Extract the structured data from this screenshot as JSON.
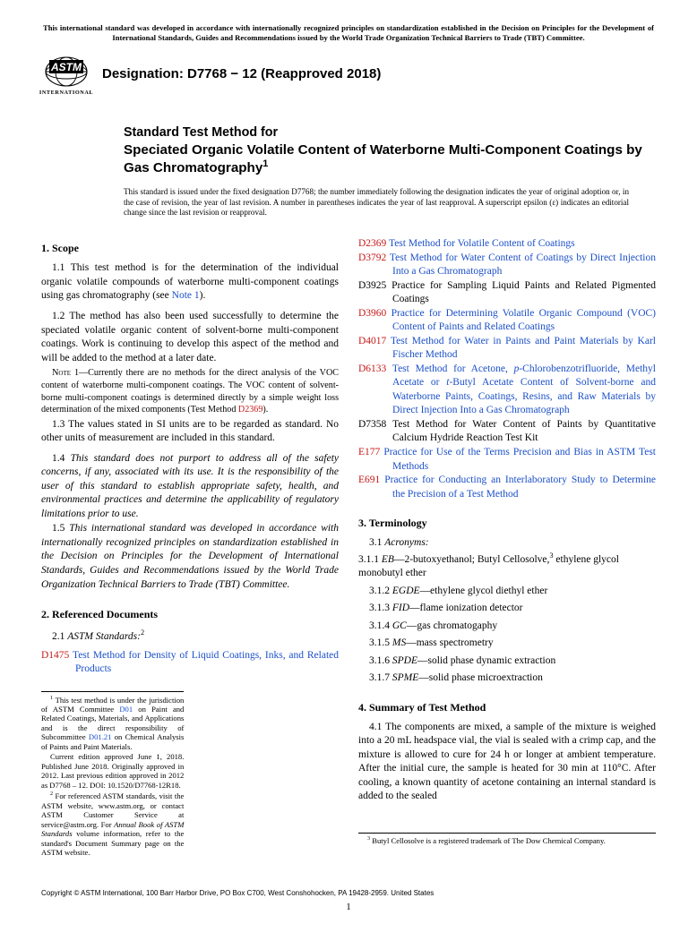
{
  "top_notice": "This international standard was developed in accordance with internationally recognized principles on standardization established in the Decision on Principles for the Development of International Standards, Guides and Recommendations issued by the World Trade Organization Technical Barriers to Trade (TBT) Committee.",
  "logo_label": "INTERNATIONAL",
  "designation": "Designation: D7768 − 12 (Reapproved 2018)",
  "title_pre": "Standard Test Method for",
  "title_main": "Speciated Organic Volatile Content of Waterborne Multi-Component Coatings by Gas Chromatography",
  "title_sup": "1",
  "issue_note": "This standard is issued under the fixed designation D7768; the number immediately following the designation indicates the year of original adoption or, in the case of revision, the year of last revision. A number in parentheses indicates the year of last reapproval. A superscript epsilon (ε) indicates an editorial change since the last revision or reapproval.",
  "s1_head": "1. Scope",
  "s1_1a": "1.1 This test method is for the determination of the individual organic volatile compounds of waterborne multi-component coatings using gas chromatography (see ",
  "s1_1_note": "Note 1",
  "s1_1b": ").",
  "s1_2": "1.2 The method has also been used successfully to determine the speciated volatile organic content of solvent-borne multi-component coatings. Work is continuing to develop this aspect of the method and will be added to the method at a later date.",
  "note1_a": " 1—Currently there are no methods for the direct analysis of the VOC content of waterborne multi-component coatings. The VOC content of solvent-borne multi-component coatings is determined directly by a simple weight loss determination of the mixed components (Test Method ",
  "note1_ref": "D2369",
  "note1_b": ").",
  "s1_3": "1.3 The values stated in SI units are to be regarded as standard. No other units of measurement are included in this standard.",
  "s1_4": "1.4 This standard does not purport to address all of the safety concerns, if any, associated with its use. It is the responsibility of the user of this standard to establish appropriate safety, health, and environmental practices and determine the applicability of regulatory limitations prior to use.",
  "s1_5": "1.5 This international standard was developed in accordance with internationally recognized principles on standardization established in the Decision on Principles for the Development of International Standards, Guides and Recommendations issued by the World Trade Organization Technical Barriers to Trade (TBT) Committee.",
  "s2_head": "2. Referenced Documents",
  "s2_1a": "2.1 ",
  "s2_1b": "ASTM Standards:",
  "s2_1sup": "2",
  "refs": [
    {
      "code": "D1475",
      "title": "Test Method for Density of Liquid Coatings, Inks, and Related Products",
      "red": true,
      "blue": false
    },
    {
      "code": "D2369",
      "title": "Test Method for Volatile Content of Coatings",
      "red": true,
      "blue": true
    },
    {
      "code": "D3792",
      "title": "Test Method for Water Content of Coatings by Direct Injection Into a Gas Chromatograph",
      "red": true,
      "blue": true
    },
    {
      "code": "D3925",
      "title": "Practice for Sampling Liquid Paints and Related Pigmented Coatings",
      "red": false,
      "blue": false
    },
    {
      "code": "D3960",
      "title": "Practice for Determining Volatile Organic Compound (VOC) Content of Paints and Related Coatings",
      "red": true,
      "blue": true
    },
    {
      "code": "D4017",
      "title": "Test Method for Water in Paints and Paint Materials by Karl Fischer Method",
      "red": true,
      "blue": true
    },
    {
      "code": "D6133",
      "title": "Test Method for Acetone, p-Chlorobenzotrifluoride, Methyl Acetate or t-Butyl Acetate Content of Solvent-borne and Waterborne Paints, Coatings, Resins, and Raw Materials by Direct Injection Into a Gas Chromatograph",
      "red": true,
      "blue": true,
      "ital_p": true
    },
    {
      "code": "D7358",
      "title": "Test Method for Water Content of Paints by Quantitative Calcium Hydride Reaction Test Kit",
      "red": false,
      "blue": false
    },
    {
      "code": "E177",
      "title": "Practice for Use of the Terms Precision and Bias in ASTM Test Methods",
      "red": true,
      "blue": true
    },
    {
      "code": "E691",
      "title": "Practice for Conducting an Interlaboratory Study to Determine the Precision of a Test Method",
      "red": true,
      "blue": true
    }
  ],
  "s3_head": "3. Terminology",
  "s3_1": "3.1 Acronyms:",
  "terms": [
    {
      "abbr": "EB",
      "def": "—2-butoxyethanol; Butyl Cellosolve,",
      "sup": "3",
      "def2": " ethylene glycol monobutyl ether",
      "num": "3.1.1 "
    },
    {
      "abbr": "EGDE",
      "def": "—ethylene glycol diethyl ether",
      "num": "3.1.2 "
    },
    {
      "abbr": "FID",
      "def": "—flame ionization detector",
      "num": "3.1.3 "
    },
    {
      "abbr": "GC",
      "def": "—gas chromatogaphy",
      "num": "3.1.4 "
    },
    {
      "abbr": "MS",
      "def": "—mass spectrometry",
      "num": "3.1.5 "
    },
    {
      "abbr": "SPDE",
      "def": "—solid phase dynamic extraction",
      "num": "3.1.6 "
    },
    {
      "abbr": "SPME",
      "def": "—solid phase microextraction",
      "num": "3.1.7 "
    }
  ],
  "s4_head": "4. Summary of Test Method",
  "s4_1": "4.1 The components are mixed, a sample of the mixture is weighed into a 20 mL headspace vial, the vial is sealed with a crimp cap, and the mixture is allowed to cure for 24 h or longer at ambient temperature. After the initial cure, the sample is heated for 30 min at 110°C. After cooling, a known quantity of acetone containing an internal standard is added to the sealed",
  "fn1a": " This test method is under the jurisdiction of ASTM Committee ",
  "fn1_d01": "D01",
  "fn1b": " on Paint and Related Coatings, Materials, and Applications and is the direct responsibility of Subcommittee ",
  "fn1_sub": "D01.21",
  "fn1c": " on Chemical Analysis of Paints and Paint Materials.",
  "fn1d": "Current edition approved June 1, 2018. Published June 2018. Originally approved in 2012. Last previous edition approved in 2012 as D7768 – 12. DOI: 10.1520/D7768-12R18.",
  "fn2a": " For referenced ASTM standards, visit the ASTM website, www.astm.org, or contact ASTM Customer Service at service@astm.org. For ",
  "fn2b": "Annual Book of ASTM Standards",
  "fn2c": " volume information, refer to the standard's Document Summary page on the ASTM website.",
  "fn3": " Butyl Cellosolve is a registered trademark of The Dow Chemical Company.",
  "copyright": "Copyright © ASTM International, 100 Barr Harbor Drive, PO Box C700, West Conshohocken, PA 19428-2959. United States",
  "pagenum": "1",
  "note_label": "Note"
}
